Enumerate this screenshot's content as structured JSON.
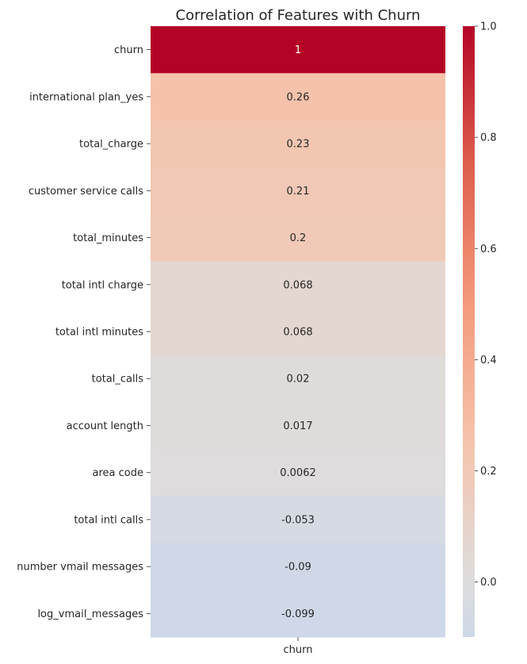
{
  "chart_data": {
    "type": "heatmap",
    "title": "Correlation of Features with Churn",
    "columns": [
      "churn"
    ],
    "rows": [
      "churn",
      "international plan_yes",
      "total_charge",
      "customer service calls",
      "total_minutes",
      "total intl charge",
      "total intl minutes",
      "total_calls",
      "account length",
      "area code",
      "total intl calls",
      "number vmail messages",
      "log_vmail_messages"
    ],
    "values": [
      1,
      0.26,
      0.23,
      0.21,
      0.2,
      0.068,
      0.068,
      0.02,
      0.017,
      0.0062,
      -0.053,
      -0.09,
      -0.099
    ],
    "value_labels": [
      "1",
      "0.26",
      "0.23",
      "0.21",
      "0.2",
      "0.068",
      "0.068",
      "0.02",
      "0.017",
      "0.0062",
      "-0.053",
      "-0.09",
      "-0.099"
    ],
    "colormap": "coolwarm",
    "center": 0,
    "colorbar": {
      "vmin": -0.099,
      "vmax": 1.0,
      "ticks": [
        0.0,
        0.2,
        0.4,
        0.6,
        0.8,
        1.0
      ],
      "tick_labels": [
        "0.0",
        "0.2",
        "0.4",
        "0.6",
        "0.8",
        "1.0"
      ]
    },
    "grid": false,
    "legend": "colorbar right"
  }
}
